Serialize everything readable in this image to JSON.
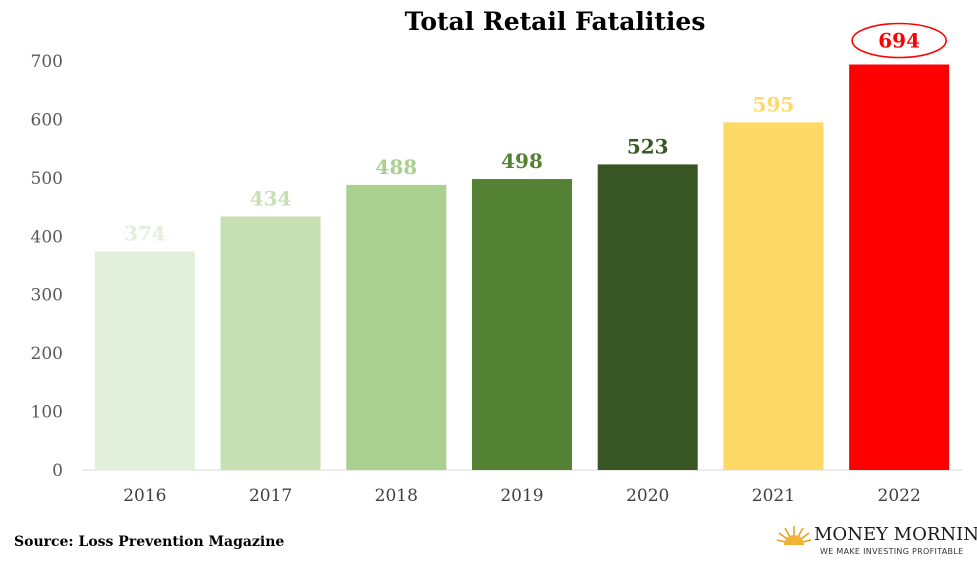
{
  "chart_data": {
    "type": "bar",
    "title": "Total Retail Fatalities",
    "categories": [
      "2016",
      "2017",
      "2018",
      "2019",
      "2020",
      "2021",
      "2022"
    ],
    "values": [
      374,
      434,
      488,
      498,
      523,
      595,
      694
    ],
    "data_labels": [
      "374",
      "434",
      "488",
      "498",
      "523",
      "595",
      "694"
    ],
    "bar_colors": [
      "#e2efda",
      "#c6e0b4",
      "#a9d08e",
      "#548235",
      "#375623",
      "#ffd966",
      "#ff0000"
    ],
    "label_colors": [
      "#e2efda",
      "#c6e0b4",
      "#a9d08e",
      "#548235",
      "#375623",
      "#ffd966",
      "#ff0000"
    ],
    "yticks": [
      "0",
      "100",
      "200",
      "300",
      "400",
      "500",
      "600",
      "700"
    ],
    "ylim": [
      0,
      700
    ],
    "grid": false,
    "highlight": {
      "category": "2022",
      "style": "circled-label"
    }
  },
  "source": "Source: Loss Prevention Magazine",
  "logo": {
    "name": "MONEY MORNING",
    "tagline": "WE MAKE INVESTING PROFITABLE",
    "icon": "sunrise-icon"
  }
}
